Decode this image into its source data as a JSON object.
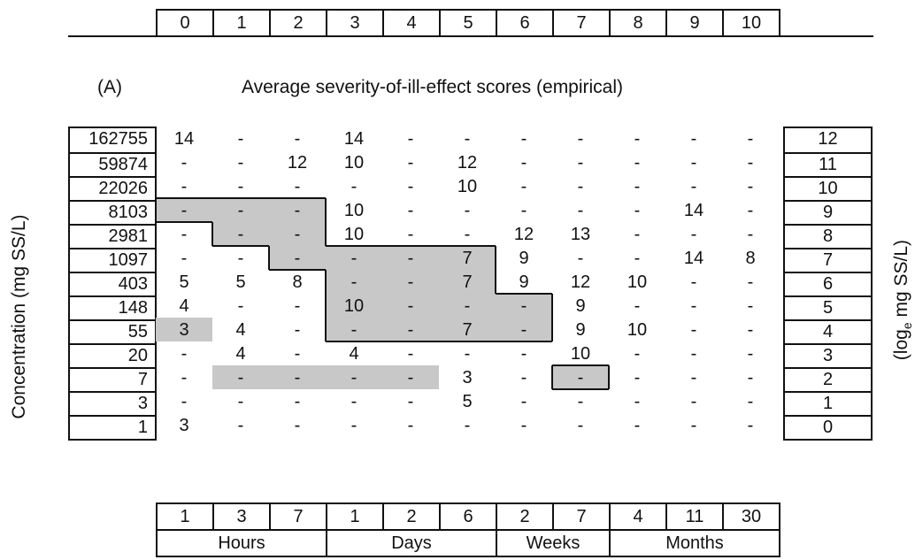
{
  "chart_data": {
    "type": "table",
    "panel_label": "(A)",
    "title": "Average severity-of-ill-effect scores (empirical)",
    "ylabel_left": "Concentration (mg SS/L)",
    "ylabel_right": "(log",
    "ylabel_right_sub": "e",
    "ylabel_right_tail": " mg SS/L)",
    "top_scale": [
      "0",
      "1",
      "2",
      "3",
      "4",
      "5",
      "6",
      "7",
      "8",
      "9",
      "10"
    ],
    "concentrations": [
      "162755",
      "59874",
      "22026",
      "8103",
      "2981",
      "1097",
      "403",
      "148",
      "55",
      "20",
      "7",
      "3",
      "1"
    ],
    "log_concentrations": [
      "12",
      "11",
      "10",
      "9",
      "8",
      "7",
      "6",
      "5",
      "4",
      "3",
      "2",
      "1",
      "0"
    ],
    "duration_values": [
      "1",
      "3",
      "7",
      "1",
      "2",
      "6",
      "2",
      "7",
      "4",
      "11",
      "30"
    ],
    "duration_units": [
      "Hours",
      "Days",
      "Weeks",
      "Months"
    ],
    "scores": [
      [
        "14",
        "-",
        "-",
        "14",
        "-",
        "-",
        "-",
        "-",
        "-",
        "-",
        "-"
      ],
      [
        "-",
        "-",
        "12",
        "10",
        "-",
        "12",
        "-",
        "-",
        "-",
        "-",
        "-"
      ],
      [
        "-",
        "-",
        "-",
        "-",
        "-",
        "10",
        "-",
        "-",
        "-",
        "-",
        "-"
      ],
      [
        "-",
        "-",
        "-",
        "10",
        "-",
        "-",
        "-",
        "-",
        "-",
        "14",
        "-"
      ],
      [
        "-",
        "-",
        "-",
        "10",
        "-",
        "-",
        "12",
        "13",
        "-",
        "-",
        "-"
      ],
      [
        "-",
        "-",
        "-",
        "-",
        "-",
        "7",
        "9",
        "-",
        "-",
        "14",
        "8"
      ],
      [
        "5",
        "5",
        "8",
        "-",
        "-",
        "7",
        "9",
        "12",
        "10",
        "-",
        "-"
      ],
      [
        "4",
        "-",
        "-",
        "10",
        "-",
        "-",
        "-",
        "9",
        "-",
        "-",
        "-"
      ],
      [
        "3",
        "4",
        "-",
        "-",
        "-",
        "7",
        "-",
        "9",
        "10",
        "-",
        "-"
      ],
      [
        "-",
        "4",
        "-",
        "4",
        "-",
        "-",
        "-",
        "10",
        "-",
        "-",
        "-"
      ],
      [
        "-",
        "-",
        "-",
        "-",
        "-",
        "3",
        "-",
        "-",
        "-",
        "-",
        "-"
      ],
      [
        "-",
        "-",
        "-",
        "-",
        "-",
        "5",
        "-",
        "-",
        "-",
        "-",
        "-"
      ],
      [
        "3",
        "-",
        "-",
        "-",
        "-",
        "-",
        "-",
        "-",
        "-",
        "-",
        "-"
      ]
    ],
    "shaded_cells": [
      [
        3,
        0
      ],
      [
        3,
        1
      ],
      [
        3,
        2
      ],
      [
        4,
        1
      ],
      [
        4,
        2
      ],
      [
        5,
        2
      ],
      [
        5,
        3
      ],
      [
        5,
        4
      ],
      [
        5,
        5
      ],
      [
        6,
        3
      ],
      [
        6,
        4
      ],
      [
        6,
        5
      ],
      [
        7,
        3
      ],
      [
        7,
        4
      ],
      [
        7,
        5
      ],
      [
        7,
        6
      ],
      [
        8,
        0
      ],
      [
        8,
        3
      ],
      [
        8,
        4
      ],
      [
        8,
        5
      ],
      [
        8,
        6
      ],
      [
        10,
        1
      ],
      [
        10,
        2
      ],
      [
        10,
        3
      ],
      [
        10,
        4
      ],
      [
        10,
        7
      ]
    ],
    "shade_color": "#c8c8c8"
  }
}
